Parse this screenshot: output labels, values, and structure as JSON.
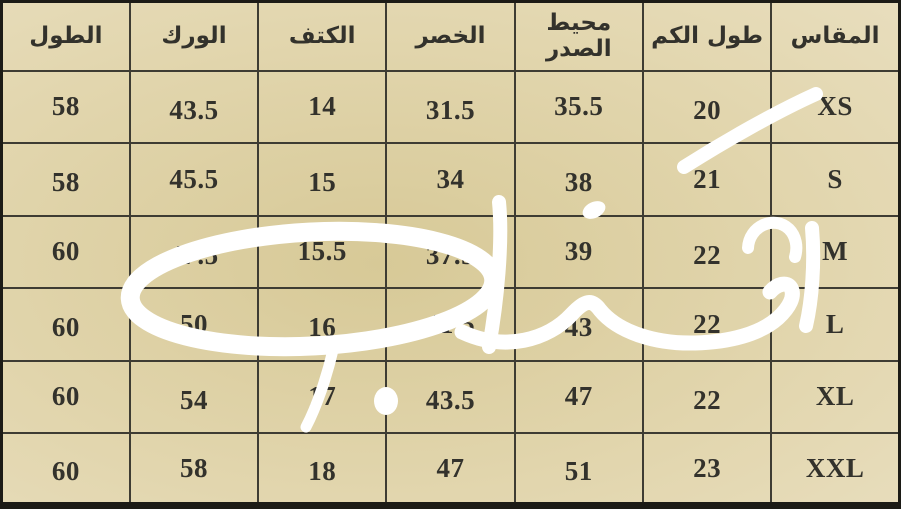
{
  "chart_data": {
    "type": "table",
    "direction": "rtl",
    "title": "",
    "columns": [
      "المقاس",
      "طول الكم",
      "محيط الصدر",
      "الخصر",
      "الكتف",
      "الورك",
      "الطول"
    ],
    "column_keys": [
      "size",
      "sleeve-length",
      "chest-circumference",
      "waist",
      "shoulder",
      "hip",
      "length"
    ],
    "rows": [
      [
        "XS",
        "20",
        "35.5",
        "31.5",
        "14",
        "43.5",
        "58"
      ],
      [
        "S",
        "21",
        "38",
        "34",
        "15",
        "45.5",
        "58"
      ],
      [
        "M",
        "22",
        "39",
        "37.5",
        "15.5",
        "47.5",
        "60"
      ],
      [
        "L",
        "22",
        "43",
        "41.5",
        "16",
        "50",
        "60"
      ],
      [
        "XL",
        "22",
        "47",
        "43.5",
        "17",
        "54",
        "60"
      ],
      [
        "XXL",
        "23",
        "51",
        "47",
        "18",
        "58",
        "60"
      ]
    ]
  },
  "watermark": {
    "description": "white handwritten Arabic signature overlay",
    "color": "#ffffff"
  },
  "colors": {
    "cell_bg_center": "#d7c997",
    "cell_bg_mid": "#e2d6ae",
    "cell_bg_edge": "#eae0c2",
    "grid_line": "#3e3c33",
    "outer_border": "#1c1b16",
    "text": "#33322c",
    "watermark": "#ffffff"
  }
}
